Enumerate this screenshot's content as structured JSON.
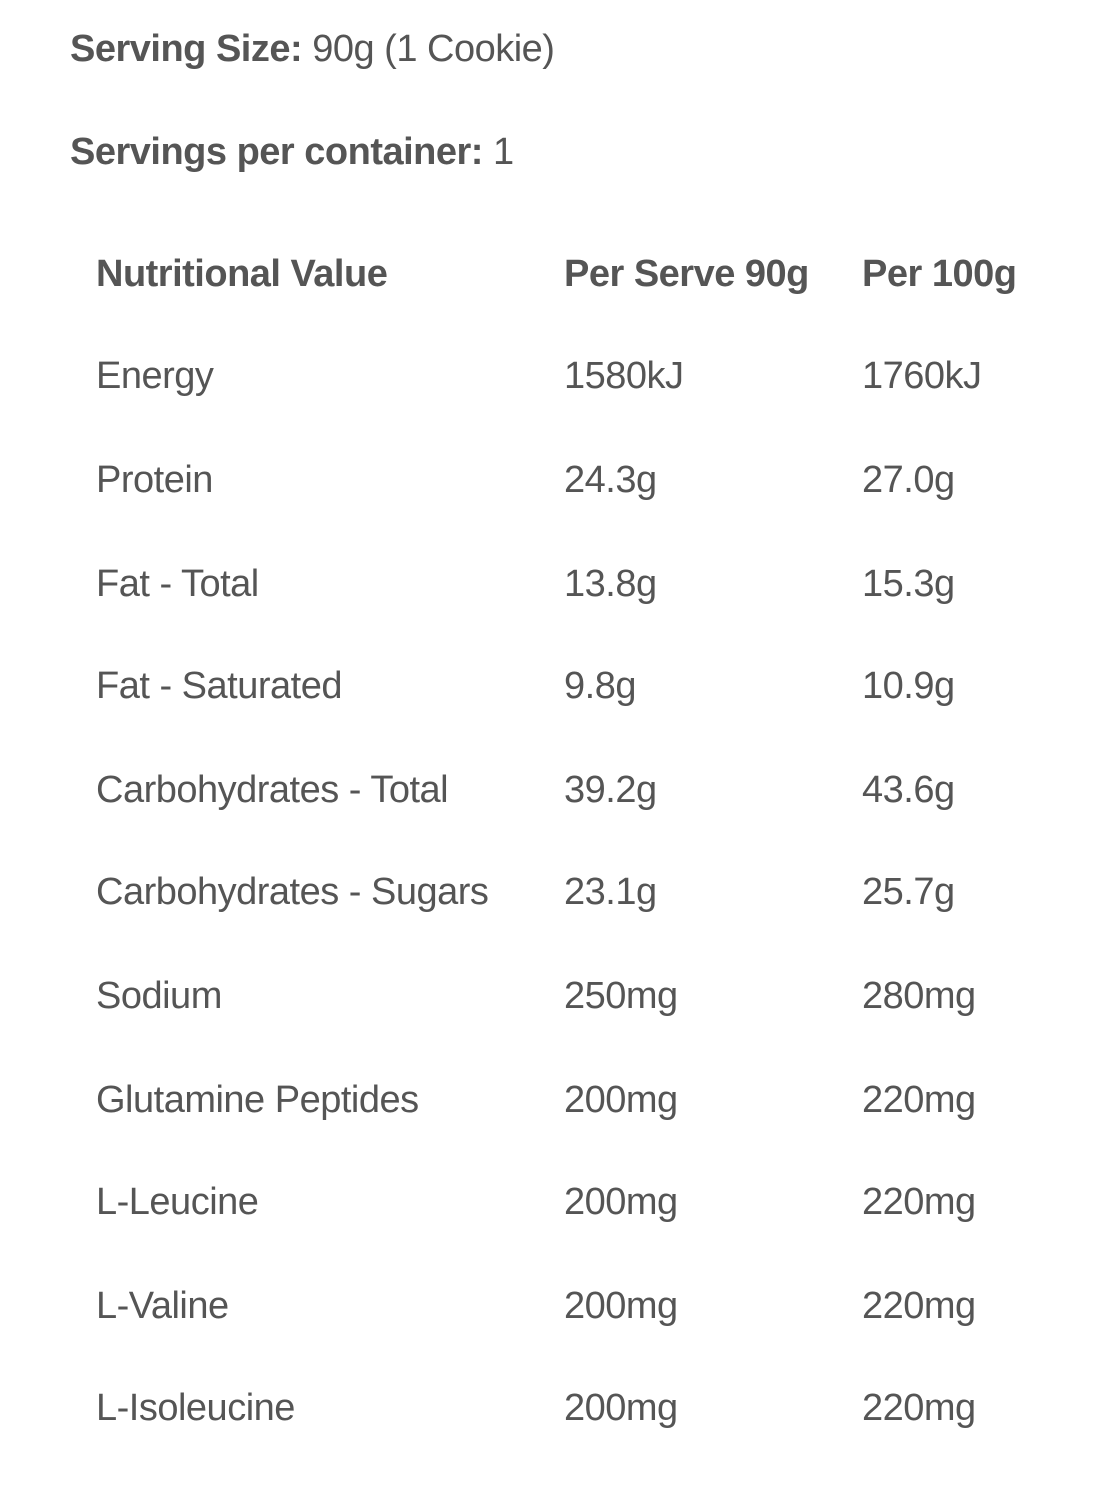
{
  "serving_info": {
    "serving_size_label": "Serving Size:",
    "serving_size_value": "90g (1 Cookie)",
    "servings_per_container_label": "Servings per container:",
    "servings_per_container_value": "1"
  },
  "table": {
    "headers": {
      "nutrient": "Nutritional Value",
      "per_serve": "Per Serve 90g",
      "per_100g": "Per 100g"
    },
    "rows": [
      {
        "nutrient": "Energy",
        "per_serve": "1580kJ",
        "per_100g": "1760kJ"
      },
      {
        "nutrient": "Protein",
        "per_serve": "24.3g",
        "per_100g": "27.0g"
      },
      {
        "nutrient": "Fat - Total",
        "per_serve": "13.8g",
        "per_100g": "15.3g"
      },
      {
        "nutrient": "Fat - Saturated",
        "per_serve": "9.8g",
        "per_100g": "10.9g"
      },
      {
        "nutrient": "Carbohydrates - Total",
        "per_serve": "39.2g",
        "per_100g": "43.6g"
      },
      {
        "nutrient": "Carbohydrates - Sugars",
        "per_serve": "23.1g",
        "per_100g": "25.7g"
      },
      {
        "nutrient": "Sodium",
        "per_serve": "250mg",
        "per_100g": "280mg"
      },
      {
        "nutrient": "Glutamine Peptides",
        "per_serve": "200mg",
        "per_100g": "220mg"
      },
      {
        "nutrient": "L-Leucine",
        "per_serve": "200mg",
        "per_100g": "220mg"
      },
      {
        "nutrient": "L-Valine",
        "per_serve": "200mg",
        "per_100g": "220mg"
      },
      {
        "nutrient": "L-Isoleucine",
        "per_serve": "200mg",
        "per_100g": "220mg"
      }
    ]
  }
}
